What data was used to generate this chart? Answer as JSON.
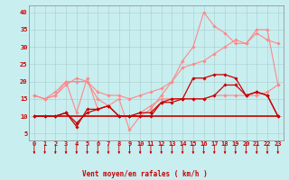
{
  "background_color": "#c8eef0",
  "grid_color": "#aacccc",
  "xlabel": "Vent moyen/en rafales ( km/h )",
  "ylabel_ticks": [
    5,
    10,
    15,
    20,
    25,
    30,
    35,
    40
  ],
  "x_labels": [
    "0",
    "1",
    "2",
    "3",
    "4",
    "5",
    "6",
    "7",
    "8",
    "9",
    "10",
    "11",
    "12",
    "13",
    "14",
    "15",
    "16",
    "17",
    "18",
    "19",
    "20",
    "21",
    "22",
    "23"
  ],
  "series": [
    {
      "name": "line_max_rafales",
      "color": "#ff8888",
      "linewidth": 0.8,
      "marker": "D",
      "markersize": 1.8,
      "data_y": [
        16,
        15,
        16,
        19,
        21,
        20,
        15,
        13,
        15,
        6,
        10,
        12,
        16,
        20,
        26,
        30,
        40,
        36,
        34,
        31,
        31,
        34,
        32,
        31
      ]
    },
    {
      "name": "line_rafales",
      "color": "#ff8888",
      "linewidth": 0.8,
      "marker": "D",
      "markersize": 1.8,
      "data_y": [
        16,
        15,
        16,
        20,
        20,
        20,
        17,
        16,
        16,
        15,
        16,
        17,
        18,
        20,
        24,
        25,
        26,
        28,
        30,
        32,
        31,
        35,
        35,
        19
      ]
    },
    {
      "name": "line_moyen_high",
      "color": "#ff8888",
      "linewidth": 0.8,
      "marker": "D",
      "markersize": 1.8,
      "data_y": [
        16,
        15,
        17,
        20,
        11,
        21,
        12,
        13,
        10,
        10,
        11,
        13,
        15,
        15,
        15,
        15,
        15,
        16,
        16,
        16,
        16,
        16,
        17,
        19
      ]
    },
    {
      "name": "line_dark1",
      "color": "#cc0000",
      "linewidth": 0.9,
      "marker": "D",
      "markersize": 1.8,
      "data_y": [
        10,
        10,
        10,
        11,
        8,
        11,
        12,
        13,
        10,
        10,
        10,
        10,
        14,
        15,
        15,
        21,
        21,
        22,
        22,
        21,
        16,
        17,
        16,
        10
      ]
    },
    {
      "name": "line_dark2",
      "color": "#cc0000",
      "linewidth": 0.9,
      "marker": "D",
      "markersize": 1.8,
      "data_y": [
        10,
        10,
        10,
        11,
        7,
        12,
        12,
        13,
        10,
        10,
        11,
        11,
        14,
        14,
        15,
        15,
        15,
        16,
        19,
        19,
        16,
        17,
        16,
        10
      ]
    },
    {
      "name": "line_flat",
      "color": "#cc0000",
      "linewidth": 1.2,
      "marker": null,
      "markersize": 0,
      "data_y": [
        10,
        10,
        10,
        10,
        10,
        10,
        10,
        10,
        10,
        10,
        10,
        10,
        10,
        10,
        10,
        10,
        10,
        10,
        10,
        10,
        10,
        10,
        10,
        10
      ]
    }
  ],
  "arrow_color": "#cc0000",
  "xlim": [
    -0.5,
    23.5
  ],
  "ylim": [
    3,
    42
  ],
  "label_color": "#cc0000",
  "tick_color": "#cc0000",
  "tick_fontsize": 5.0,
  "xlabel_fontsize": 5.5
}
